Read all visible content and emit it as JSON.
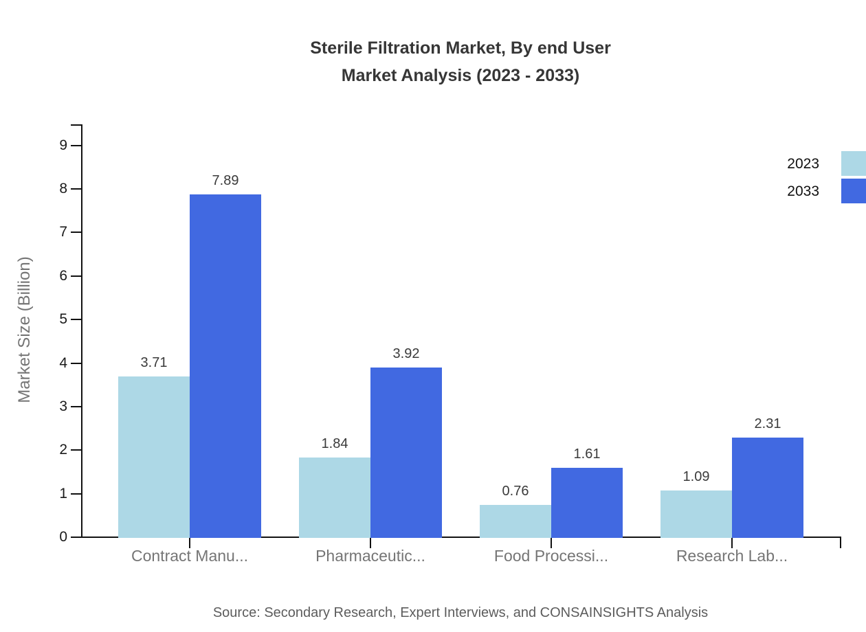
{
  "title": {
    "line1": "Sterile Filtration Market, By end User",
    "line2": "Market Analysis (2023 - 2033)"
  },
  "source_note": "Source: Secondary Research, Expert Interviews, and CONSAINSIGHTS Analysis",
  "colors": {
    "series_2023": "#ADD8E6",
    "series_2033": "#4169E1",
    "axis": "#111111",
    "category_text": "#757575",
    "value_text": "#3a3a3a",
    "title_text": "#363636",
    "source_text": "#5c5c5c"
  },
  "chart_data": {
    "type": "bar",
    "title": "Sterile Filtration Market, By end User Market Analysis (2023 - 2033)",
    "ylabel": "Market Size (Billion)",
    "xlabel": "",
    "categories": [
      "Contract Manu...",
      "Pharmaceutic...",
      "Food Processi...",
      "Research Lab..."
    ],
    "series": [
      {
        "name": "2023",
        "color": "#ADD8E6",
        "values": [
          3.71,
          1.84,
          0.76,
          1.09
        ]
      },
      {
        "name": "2033",
        "color": "#4169E1",
        "values": [
          7.89,
          3.92,
          1.61,
          2.31
        ]
      }
    ],
    "value_labels": [
      [
        "3.71",
        "1.84",
        "0.76",
        "1.09"
      ],
      [
        "7.89",
        "3.92",
        "1.61",
        "2.31"
      ]
    ],
    "yticks": [
      0,
      1,
      2,
      3,
      4,
      5,
      6,
      7,
      8,
      9
    ],
    "ylim": [
      0,
      9.47
    ],
    "grid": false,
    "legend_position": "top-right"
  }
}
